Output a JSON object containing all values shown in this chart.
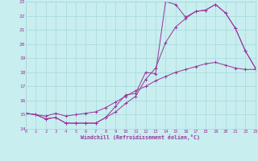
{
  "background_color": "#c8eef0",
  "grid_color": "#a8d8dc",
  "line_color": "#993399",
  "xlabel": "Windchill (Refroidissement éolien,°C)",
  "xlim": [
    0,
    23
  ],
  "ylim": [
    14,
    23
  ],
  "xticks": [
    0,
    1,
    2,
    3,
    4,
    5,
    6,
    7,
    8,
    9,
    10,
    11,
    12,
    13,
    14,
    15,
    16,
    17,
    18,
    19,
    20,
    21,
    22,
    23
  ],
  "yticks": [
    14,
    15,
    16,
    17,
    18,
    19,
    20,
    21,
    22,
    23
  ],
  "curve1_x": [
    0,
    1,
    2,
    3,
    4,
    5,
    6,
    7,
    8,
    9,
    10,
    11,
    12,
    13,
    14,
    15,
    16,
    17,
    18,
    19,
    20,
    21,
    22,
    23
  ],
  "curve1_y": [
    15.1,
    15.0,
    14.7,
    14.8,
    14.4,
    14.4,
    14.4,
    14.4,
    14.8,
    15.6,
    16.4,
    16.5,
    18.0,
    17.9,
    23.0,
    22.8,
    21.9,
    22.3,
    22.4,
    22.8,
    22.2,
    21.1,
    19.5,
    18.3
  ],
  "curve2_x": [
    0,
    1,
    2,
    3,
    4,
    5,
    6,
    7,
    8,
    9,
    10,
    11,
    12,
    13,
    14,
    15,
    16,
    17,
    18,
    19,
    20,
    21,
    22,
    23
  ],
  "curve2_y": [
    15.1,
    15.0,
    14.7,
    14.8,
    14.4,
    14.4,
    14.4,
    14.4,
    14.8,
    15.2,
    15.8,
    16.3,
    17.5,
    18.3,
    20.1,
    21.2,
    21.8,
    22.3,
    22.4,
    22.8,
    22.2,
    21.1,
    19.5,
    18.3
  ],
  "curve3_x": [
    0,
    1,
    2,
    3,
    4,
    5,
    6,
    7,
    8,
    9,
    10,
    11,
    12,
    13,
    14,
    15,
    16,
    17,
    18,
    19,
    20,
    21,
    22,
    23
  ],
  "curve3_y": [
    15.1,
    15.0,
    14.9,
    15.1,
    14.9,
    15.0,
    15.1,
    15.2,
    15.5,
    15.9,
    16.3,
    16.7,
    17.0,
    17.4,
    17.7,
    18.0,
    18.2,
    18.4,
    18.6,
    18.7,
    18.5,
    18.3,
    18.2,
    18.2
  ]
}
